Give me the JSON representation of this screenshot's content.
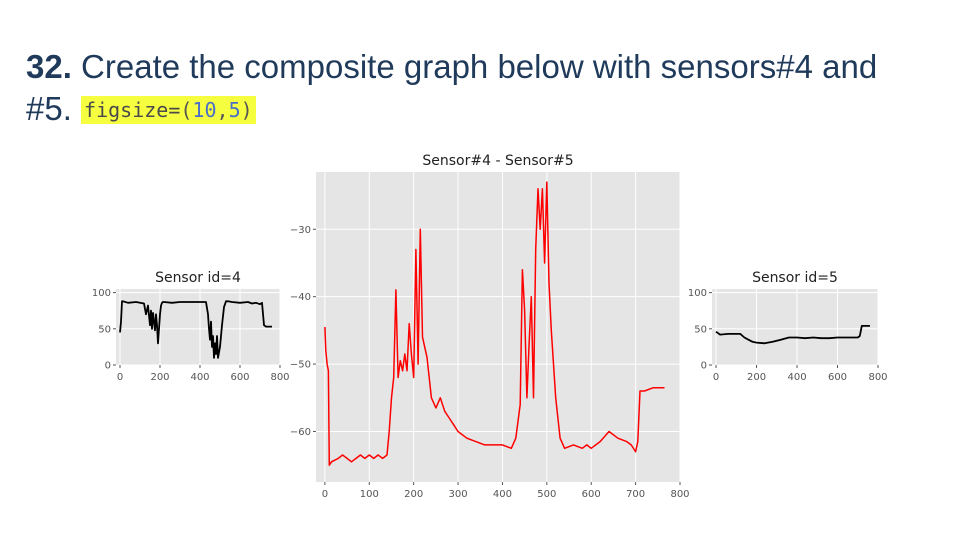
{
  "slide": {
    "number": "32.",
    "text_line1": " Create the composite graph below with sensors#4 and",
    "text_line2": "#5. ",
    "code": {
      "func": "figsize=",
      "open": "(",
      "a": "10",
      "sep": ",",
      "b": "5",
      "close": ")"
    }
  },
  "colors": {
    "heading": "#1f3a5a",
    "highlight": "#f6ff3f",
    "plot_bg": "#e5e5e5",
    "line_main": "#ff0000",
    "line_small": "#000000"
  },
  "chart_data": [
    {
      "type": "line",
      "title": "Sensor id=4",
      "xlim": [
        -20,
        800
      ],
      "ylim": [
        0,
        105
      ],
      "xticks": [
        0,
        200,
        400,
        600,
        800
      ],
      "yticks": [
        0,
        50,
        100
      ],
      "grid": true,
      "series": [
        {
          "color": "#000000",
          "x": [
            0,
            5,
            10,
            15,
            40,
            80,
            120,
            130,
            140,
            150,
            155,
            160,
            165,
            170,
            175,
            180,
            185,
            190,
            200,
            205,
            210,
            215,
            220,
            260,
            300,
            350,
            400,
            430,
            440,
            445,
            450,
            455,
            460,
            465,
            470,
            475,
            480,
            485,
            490,
            500,
            510,
            520,
            530,
            540,
            560,
            600,
            640,
            660,
            680,
            700,
            710,
            720,
            730,
            740,
            760
          ],
          "y": [
            45,
            60,
            88,
            88,
            86,
            87,
            85,
            70,
            82,
            55,
            75,
            50,
            72,
            60,
            48,
            70,
            55,
            30,
            70,
            82,
            86,
            87,
            87,
            86,
            87,
            87,
            87,
            87,
            70,
            50,
            35,
            60,
            25,
            40,
            10,
            30,
            15,
            40,
            10,
            25,
            55,
            80,
            88,
            88,
            87,
            86,
            87,
            85,
            86,
            84,
            86,
            55,
            53,
            53,
            53
          ]
        }
      ]
    },
    {
      "type": "line",
      "title": "Sensor#4 - Sensor#5",
      "xlim": [
        -20,
        800
      ],
      "ylim": [
        -67.5,
        -21.5
      ],
      "xticks": [
        0,
        100,
        200,
        300,
        400,
        500,
        600,
        700,
        800
      ],
      "yticks": [
        -30,
        -40,
        -50,
        -60
      ],
      "grid": true,
      "series": [
        {
          "color": "#ff0000",
          "x": [
            0,
            2,
            5,
            8,
            10,
            15,
            30,
            40,
            50,
            60,
            70,
            80,
            90,
            100,
            110,
            120,
            130,
            140,
            145,
            150,
            155,
            160,
            165,
            170,
            175,
            180,
            185,
            190,
            195,
            200,
            205,
            210,
            215,
            220,
            230,
            240,
            250,
            260,
            270,
            280,
            290,
            300,
            320,
            340,
            360,
            380,
            400,
            420,
            430,
            440,
            445,
            450,
            455,
            460,
            465,
            470,
            475,
            480,
            485,
            490,
            495,
            500,
            505,
            510,
            520,
            530,
            540,
            560,
            580,
            590,
            600,
            620,
            640,
            660,
            680,
            690,
            700,
            705,
            710,
            720,
            740,
            765
          ],
          "y": [
            -44.5,
            -48,
            -50,
            -51,
            -65,
            -64.5,
            -64,
            -63.5,
            -64,
            -64.5,
            -64,
            -63.5,
            -64,
            -63.5,
            -64,
            -63.5,
            -64,
            -63.5,
            -60,
            -55,
            -52,
            -39,
            -52,
            -49.5,
            -51,
            -48.5,
            -51,
            -44,
            -48.5,
            -52,
            -33,
            -50,
            -30,
            -46,
            -49,
            -55,
            -56.5,
            -55,
            -57,
            -58,
            -59,
            -60,
            -61,
            -61.5,
            -62,
            -62,
            -62,
            -62.5,
            -61,
            -56,
            -36,
            -42,
            -55,
            -47,
            -40,
            -55,
            -33,
            -24,
            -30,
            -24,
            -35,
            -23,
            -38,
            -45,
            -55,
            -61,
            -62.5,
            -62,
            -62.5,
            -62,
            -62.5,
            -61.5,
            -60,
            -61,
            -61.5,
            -62,
            -63,
            -61.5,
            -54,
            -54,
            -53.5,
            -53.5
          ]
        }
      ]
    },
    {
      "type": "line",
      "title": "Sensor id=5",
      "xlim": [
        -20,
        800
      ],
      "ylim": [
        0,
        105
      ],
      "xticks": [
        0,
        200,
        400,
        600,
        800
      ],
      "yticks": [
        0,
        50,
        100
      ],
      "grid": true,
      "series": [
        {
          "color": "#000000",
          "x": [
            0,
            20,
            60,
            100,
            120,
            140,
            160,
            180,
            200,
            240,
            280,
            320,
            360,
            400,
            440,
            480,
            520,
            560,
            600,
            640,
            680,
            700,
            710,
            720,
            740,
            760
          ],
          "y": [
            46,
            42,
            43,
            43,
            43,
            38,
            35,
            32,
            31,
            30,
            32,
            35,
            38,
            38,
            37,
            38,
            37,
            37,
            38,
            38,
            38,
            38,
            40,
            54,
            54,
            54
          ]
        }
      ]
    }
  ]
}
